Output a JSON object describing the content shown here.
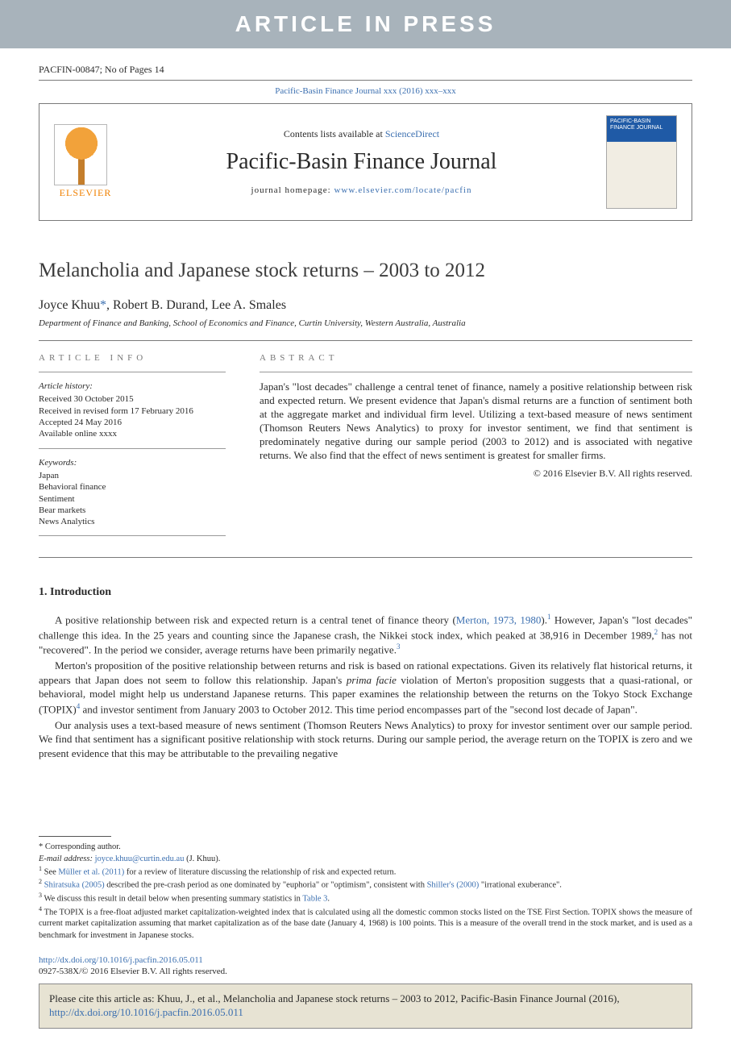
{
  "banner": "ARTICLE IN PRESS",
  "docid": "PACFIN-00847; No of Pages 14",
  "locator": {
    "pre": "Pacific-Basin Finance Journal xxx (2016) xxx–xxx"
  },
  "header": {
    "contents_pre": "Contents lists available at ",
    "contents_link": "ScienceDirect",
    "journal": "Pacific-Basin Finance Journal",
    "hp_label": "journal homepage: ",
    "hp_url": "www.elsevier.com/locate/pacfin",
    "publisher": "ELSEVIER"
  },
  "cover_caption": "PACIFIC-BASIN FINANCE JOURNAL",
  "title": "Melancholia and Japanese stock returns – 2003 to 2012",
  "authors": {
    "a1": "Joyce Khuu",
    "corr": "*",
    "a2": "Robert B. Durand",
    "a3": "Lee A. Smales"
  },
  "affil": "Department of Finance and Banking, School of Economics and Finance, Curtin University, Western Australia, Australia",
  "info": {
    "head": "article info",
    "hist_label": "Article history:",
    "h1": "Received 30 October 2015",
    "h2": "Received in revised form 17 February 2016",
    "h3": "Accepted 24 May 2016",
    "h4": "Available online xxxx",
    "kw_label": "Keywords:",
    "k1": "Japan",
    "k2": "Behavioral finance",
    "k3": "Sentiment",
    "k4": "Bear markets",
    "k5": "News Analytics"
  },
  "abstract": {
    "head": "abstract",
    "text": "Japan's \"lost decades\" challenge a central tenet of finance, namely a positive relationship between risk and expected return. We present evidence that Japan's dismal returns are a function of sentiment both at the aggregate market and individual firm level. Utilizing a text-based measure of news sentiment (Thomson Reuters News Analytics) to proxy for investor sentiment, we find that sentiment is predominately negative during our sample period (2003 to 2012) and is associated with negative returns. We also find that the effect of news sentiment is greatest for smaller firms.",
    "copyright": "© 2016 Elsevier B.V. All rights reserved."
  },
  "section1": {
    "heading": "1. Introduction",
    "p1a": "A positive relationship between risk and expected return is a central tenet of finance theory (",
    "p1link1": "Merton, 1973, 1980",
    "p1b": ").",
    "p1fn1": "1",
    "p1c": " However, Japan's \"lost decades\" challenge this idea. In the 25 years and counting since the Japanese crash, the Nikkei stock index, which peaked at 38,916 in December 1989,",
    "p1fn2": "2",
    "p1d": " has not \"recovered\". In the period we consider, average returns have been primarily negative.",
    "p1fn3": "3",
    "p2a": "Merton's proposition of the positive relationship between returns and risk is based on rational expectations. Given its relatively flat historical returns, it appears that Japan does not seem to follow this relationship. Japan's ",
    "p2ital": "prima facie",
    "p2b": " violation of Merton's proposition suggests that a quasi-rational, or behavioral, model might help us understand Japanese returns. This paper examines the relationship between the returns on the Tokyo Stock Exchange (TOPIX)",
    "p2fn4": "4",
    "p2c": " and investor sentiment from January 2003 to October 2012. This time period encompasses part of the \"second lost decade of Japan\".",
    "p3": "Our analysis uses a text-based measure of news sentiment (Thomson Reuters News Analytics) to proxy for investor sentiment over our sample period. We find that sentiment has a significant positive relationship with stock returns. During our sample period, the average return on the TOPIX is zero and we present evidence that this may be attributable to the prevailing negative"
  },
  "footnotes": {
    "corr": "* Corresponding author.",
    "email_label": "E-mail address:",
    "email": "joyce.khuu@curtin.edu.au",
    "email_who": "(J. Khuu).",
    "f1a": "See ",
    "f1link": "Müller et al. (2011)",
    "f1b": " for a review of literature discussing the relationship of risk and expected return.",
    "f2a": "",
    "f2link1": "Shiratsuka (2005)",
    "f2b": " described the pre-crash period as one dominated by \"euphoria\" or \"optimism\", consistent with ",
    "f2link2": "Shiller's (2000)",
    "f2c": " \"irrational exuberance\".",
    "f3a": "We discuss this result in detail below when presenting summary statistics in ",
    "f3link": "Table 3",
    "f3b": ".",
    "f4": "The TOPIX is a free-float adjusted market capitalization-weighted index that is calculated using all the domestic common stocks listed on the TSE First Section. TOPIX shows the measure of current market capitalization assuming that market capitalization as of the base date (January 4, 1968) is 100 points. This is a measure of the overall trend in the stock market, and is used as a benchmark for investment in Japanese stocks."
  },
  "doi": {
    "url": "http://dx.doi.org/10.1016/j.pacfin.2016.05.011",
    "issn": "0927-538X/© 2016 Elsevier B.V. All rights reserved."
  },
  "citebox": {
    "pre": "Please cite this article as: Khuu, J., et al., Melancholia and Japanese stock returns – 2003 to 2012, Pacific-Basin Finance Journal (2016), ",
    "url": "http://dx.doi.org/10.1016/j.pacfin.2016.05.011"
  },
  "colors": {
    "banner_bg": "#a8b3bb",
    "link": "#3b6fb0",
    "elsevier": "#f08000",
    "cite_bg": "#e7e3d3",
    "cover_blue": "#1f5aa6"
  }
}
